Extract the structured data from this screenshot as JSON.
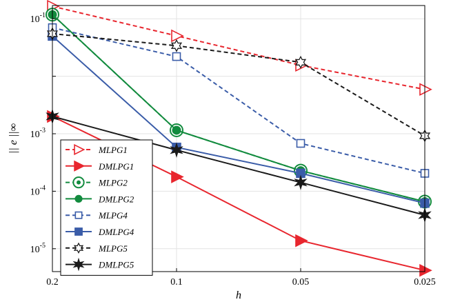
{
  "chart_data": {
    "type": "line",
    "title": "",
    "xlabel": "h",
    "ylabel": "|| e ||∞",
    "x_scale": "log",
    "y_scale": "log",
    "x": [
      0.2,
      0.1,
      0.05,
      0.025
    ],
    "x_tick_labels": [
      "0.2",
      "0.1",
      "0.05",
      "0.025"
    ],
    "xlim": [
      0.2,
      0.025
    ],
    "ylim": [
      4e-06,
      0.17
    ],
    "y_ticks": [
      {
        "value": 0.1,
        "base": "10",
        "exp": "-1"
      },
      {
        "value": 0.001,
        "base": "10",
        "exp": "-3"
      },
      {
        "value": 0.0001,
        "base": "10",
        "exp": "-4"
      },
      {
        "value": 1e-05,
        "base": "10",
        "exp": "-5"
      }
    ],
    "grid": true,
    "legend_position": "bottom-left",
    "series": [
      {
        "name": "MLPG1",
        "color": "#e8262e",
        "dashed": true,
        "marker": "triangle-right",
        "filled": false,
        "values": [
          0.165,
          0.0505,
          0.0155,
          0.0059
        ]
      },
      {
        "name": "DMLPG1",
        "color": "#e8262e",
        "dashed": false,
        "marker": "triangle-right",
        "filled": true,
        "values": [
          0.002,
          0.000178,
          1.38e-05,
          4.2e-06
        ]
      },
      {
        "name": "MLPG2",
        "color": "#128b3e",
        "dashed": true,
        "marker": "circle-dot",
        "filled": false,
        "values": [
          0.118,
          0.00115,
          0.000228,
          6.6e-05
        ]
      },
      {
        "name": "DMLPG2",
        "color": "#128b3e",
        "dashed": false,
        "marker": "circle",
        "filled": true,
        "values": [
          0.118,
          0.00115,
          0.000228,
          6.6e-05
        ]
      },
      {
        "name": "MLPG4",
        "color": "#3a5ca8",
        "dashed": true,
        "marker": "square",
        "filled": false,
        "values": [
          0.07,
          0.022,
          0.00068,
          0.000205
        ]
      },
      {
        "name": "DMLPG4",
        "color": "#3a5ca8",
        "dashed": false,
        "marker": "square",
        "filled": true,
        "values": [
          0.05,
          0.00058,
          0.000205,
          6.2e-05
        ]
      },
      {
        "name": "MLPG5",
        "color": "#1a1a1a",
        "dashed": true,
        "marker": "star",
        "filled": false,
        "values": [
          0.055,
          0.034,
          0.0175,
          0.00092
        ]
      },
      {
        "name": "DMLPG5",
        "color": "#1a1a1a",
        "dashed": false,
        "marker": "star",
        "filled": true,
        "values": [
          0.002,
          0.00052,
          0.000142,
          3.85e-05
        ]
      }
    ]
  }
}
